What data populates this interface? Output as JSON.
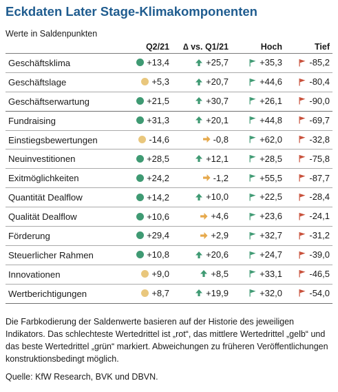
{
  "title": "Eckdaten Later Stage-Klimakomponenten",
  "subtitle": "Werte in Saldenpunkten",
  "columns": {
    "q2": "Q2/21",
    "delta_symbol": "∆",
    "delta": " vs. Q1/21",
    "high": "Hoch",
    "low": "Tief"
  },
  "colors": {
    "green": "#3f9a73",
    "yellow": "#e9c77d",
    "arrow_up": "#3f9a73",
    "arrow_right": "#e6a94c",
    "flag_high": "#3f9a73",
    "flag_low": "#c8503a"
  },
  "rows": [
    {
      "label": "Geschäftsklima",
      "status": "green",
      "q2": "+13,4",
      "trend": "arrow-up",
      "delta": "+25,7",
      "high": "+35,3",
      "low": "-85,2"
    },
    {
      "label": "Geschäftslage",
      "status": "yellow",
      "q2": "+5,3",
      "trend": "arrow-up",
      "delta": "+20,7",
      "high": "+44,6",
      "low": "-80,4"
    },
    {
      "label": "Geschäftserwartung",
      "status": "green",
      "q2": "+21,5",
      "trend": "arrow-up",
      "delta": "+30,7",
      "high": "+26,1",
      "low": "-90,0"
    },
    {
      "label": "Fundraising",
      "status": "green",
      "q2": "+31,3",
      "trend": "arrow-up",
      "delta": "+20,1",
      "high": "+44,8",
      "low": "-69,7"
    },
    {
      "label": "Einstiegsbewertungen",
      "status": "yellow",
      "q2": "-14,6",
      "trend": "arrow-right",
      "delta": "-0,8",
      "high": "+62,0",
      "low": "-32,8"
    },
    {
      "label": "Neuinvestitionen",
      "status": "green",
      "q2": "+28,5",
      "trend": "arrow-up",
      "delta": "+12,1",
      "high": "+28,5",
      "low": "-75,8"
    },
    {
      "label": "Exitmöglichkeiten",
      "status": "green",
      "q2": "+24,2",
      "trend": "arrow-right",
      "delta": "-1,2",
      "high": "+55,5",
      "low": "-87,7"
    },
    {
      "label": "Quantität Dealflow",
      "status": "green",
      "q2": "+14,2",
      "trend": "arrow-up",
      "delta": "+10,0",
      "high": "+22,5",
      "low": "-28,4"
    },
    {
      "label": "Qualität Dealflow",
      "status": "green",
      "q2": "+10,6",
      "trend": "arrow-right",
      "delta": "+4,6",
      "high": "+23,6",
      "low": "-24,1"
    },
    {
      "label": "Förderung",
      "status": "green",
      "q2": "+29,4",
      "trend": "arrow-right",
      "delta": "+2,9",
      "high": "+32,7",
      "low": "-31,2"
    },
    {
      "label": "Steuerlicher Rahmen",
      "status": "green",
      "q2": "+10,8",
      "trend": "arrow-up",
      "delta": "+20,6",
      "high": "+24,7",
      "low": "-39,0"
    },
    {
      "label": "Innovationen",
      "status": "yellow",
      "q2": "+9,0",
      "trend": "arrow-up",
      "delta": "+8,5",
      "high": "+33,1",
      "low": "-46,5"
    },
    {
      "label": "Wertberichtigungen",
      "status": "yellow",
      "q2": "+8,7",
      "trend": "arrow-up",
      "delta": "+19,9",
      "high": "+32,0",
      "low": "-54,0"
    }
  ],
  "note": "Die Farbkodierung der Saldenwerte basieren auf der Historie des jeweiligen Indikators. Das schlechteste Wertedrittel ist „rot“, das mittlere Wertedrittel „gelb“ und das beste Wertedrittel „grün“ markiert. Abweichungen zu früheren Veröffentlichungen konstruktionsbedingt möglich.",
  "source": "Quelle: KfW Research, BVK und DBVN."
}
